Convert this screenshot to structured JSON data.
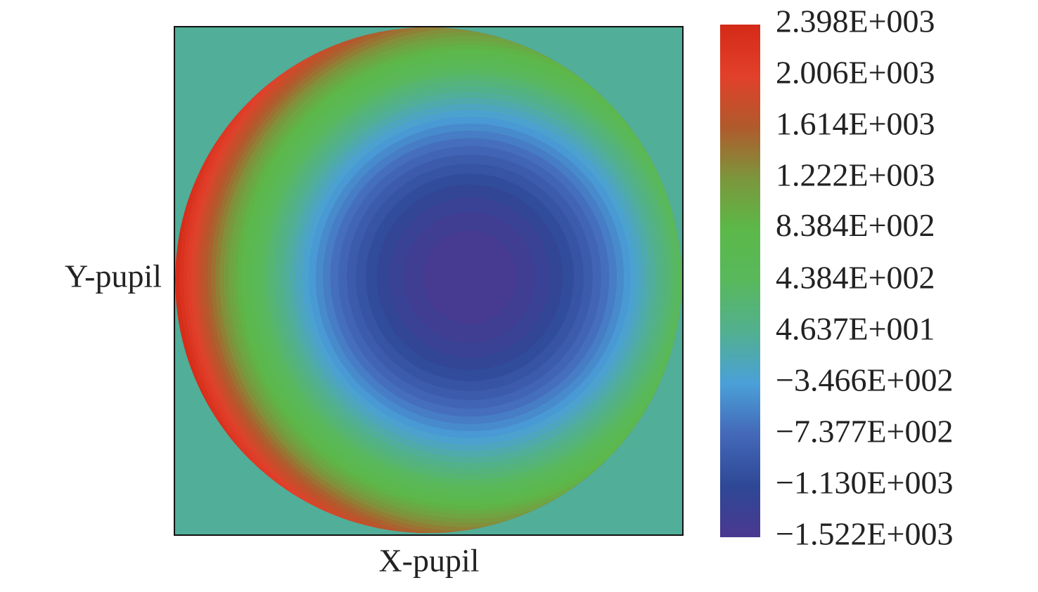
{
  "chart_data": {
    "type": "heatmap",
    "x_label": "X-pupil",
    "y_label": "Y-pupil",
    "clim": [
      -1522,
      2398
    ],
    "colorbar": {
      "ticks": [
        {
          "value": 2398,
          "label": "2.398E+003"
        },
        {
          "value": 2006,
          "label": "2.006E+003"
        },
        {
          "value": 1614,
          "label": "1.614E+003"
        },
        {
          "value": 1222,
          "label": "1.222E+003"
        },
        {
          "value": 838.4,
          "label": "8.384E+002"
        },
        {
          "value": 438.4,
          "label": "4.384E+002"
        },
        {
          "value": 46.37,
          "label": "4.637E+001"
        },
        {
          "value": -346.6,
          "label": "−3.466E+002"
        },
        {
          "value": -737.7,
          "label": "−7.377E+002"
        },
        {
          "value": -1130,
          "label": "−1.130E+003"
        },
        {
          "value": -1522,
          "label": "−1.522E+003"
        }
      ],
      "colors": [
        "#d42a18",
        "#e2402a",
        "#b05a2c",
        "#7c963c",
        "#5cb848",
        "#58b85c",
        "#52b090",
        "#4aa0d8",
        "#4468b8",
        "#2e4896",
        "#4a3890"
      ]
    }
  }
}
